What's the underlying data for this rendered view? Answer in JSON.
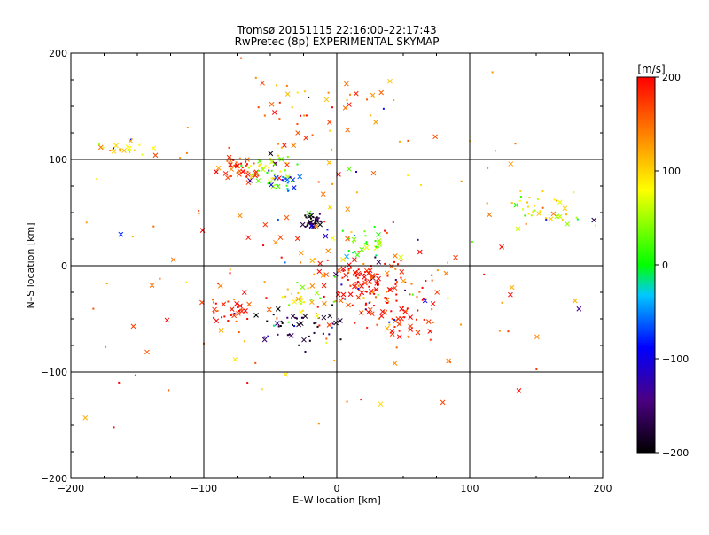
{
  "chart_data": {
    "type": "scatter",
    "title": "Tromsø 20151115 22:16:00–22:17:43",
    "subtitle": "RwPretec (8p) EXPERIMENTAL SKYMAP",
    "xlabel": "E–W location [km]",
    "ylabel": "N–S location [km]",
    "xlim": [
      -200,
      200
    ],
    "ylim": [
      -200,
      200
    ],
    "xticks": [
      -200,
      -100,
      0,
      100,
      200
    ],
    "yticks": [
      -200,
      -100,
      0,
      100,
      200
    ],
    "xtick_labels": [
      "−200",
      "−100",
      "0",
      "100",
      "200"
    ],
    "ytick_labels": [
      "−200",
      "−100",
      "0",
      "100",
      "200"
    ],
    "grid": true,
    "colorbar": {
      "label": "[m/s]",
      "range": [
        -200,
        200
      ],
      "ticks": [
        200,
        100,
        0,
        -100,
        -200
      ],
      "tick_labels": [
        "200",
        "100",
        "0",
        "−100",
        "−200"
      ],
      "colormap": [
        "#000000",
        "#4b0082",
        "#0000ff",
        "#00c8ff",
        "#00ff00",
        "#ffff00",
        "#ff8000",
        "#ff0000"
      ]
    },
    "marker_types": [
      "x",
      "dot"
    ],
    "clusters": [
      {
        "center": [
          -75,
          92
        ],
        "spread": [
          10,
          8
        ],
        "velocity": 180,
        "n": 50
      },
      {
        "center": [
          -50,
          90
        ],
        "spread": [
          12,
          10
        ],
        "velocity": 60,
        "n": 45
      },
      {
        "center": [
          -40,
          80
        ],
        "spread": [
          8,
          7
        ],
        "velocity": -40,
        "n": 25
      },
      {
        "center": [
          -18,
          42
        ],
        "spread": [
          7,
          5
        ],
        "velocity": -190,
        "n": 40
      },
      {
        "center": [
          -160,
          110
        ],
        "spread": [
          15,
          5
        ],
        "velocity": 90,
        "n": 20
      },
      {
        "center": [
          160,
          50
        ],
        "spread": [
          25,
          12
        ],
        "velocity": 90,
        "n": 40
      },
      {
        "center": [
          20,
          -15
        ],
        "spread": [
          22,
          18
        ],
        "velocity": 200,
        "n": 110
      },
      {
        "center": [
          45,
          -40
        ],
        "spread": [
          25,
          20
        ],
        "velocity": 190,
        "n": 70
      },
      {
        "center": [
          -30,
          -60
        ],
        "spread": [
          25,
          12
        ],
        "velocity": -180,
        "n": 50
      },
      {
        "center": [
          -80,
          -40
        ],
        "spread": [
          12,
          12
        ],
        "velocity": 190,
        "n": 30
      },
      {
        "center": [
          -25,
          -30
        ],
        "spread": [
          10,
          10
        ],
        "velocity": 80,
        "n": 25
      },
      {
        "center": [
          20,
          20
        ],
        "spread": [
          15,
          10
        ],
        "velocity": 30,
        "n": 30
      },
      {
        "center": [
          -10,
          140
        ],
        "spread": [
          40,
          30
        ],
        "velocity": 150,
        "n": 45
      },
      {
        "center": [
          0,
          0
        ],
        "spread": [
          140,
          110
        ],
        "velocity": 150,
        "n": 160
      }
    ]
  }
}
